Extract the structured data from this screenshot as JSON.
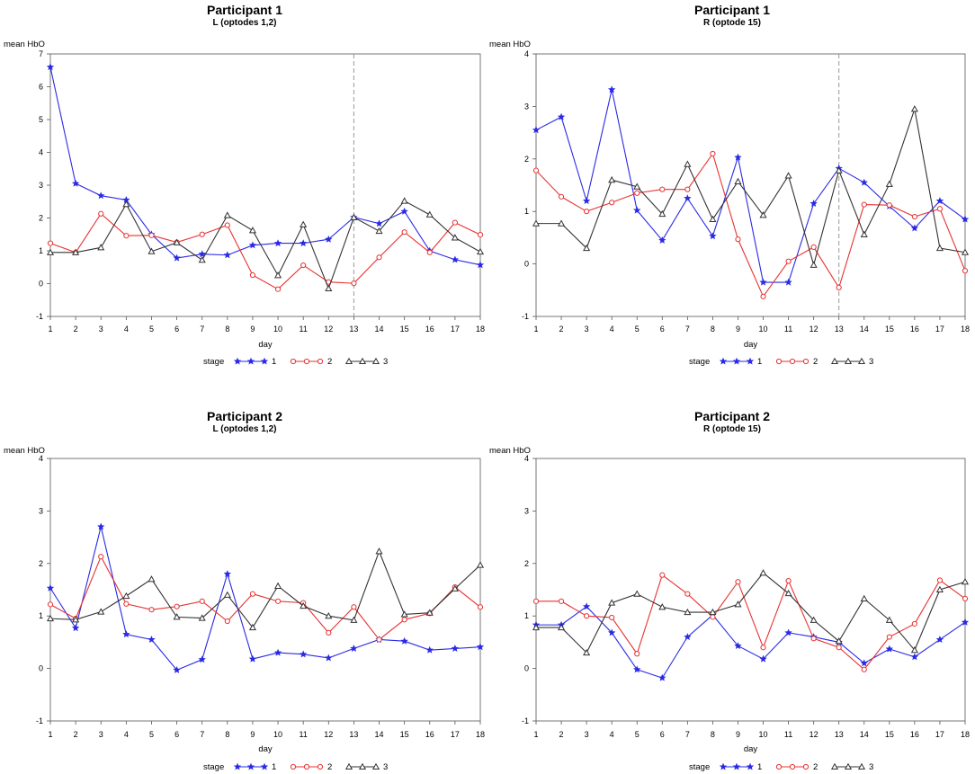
{
  "colors": {
    "stage1": "#2a2ae6",
    "stage2": "#e83232",
    "stage3": "#333333",
    "axis": "#555555",
    "refline": "#9a9a9a"
  },
  "chart_data": [
    {
      "type": "line",
      "title": "Participant 1",
      "subtitle": "L (optodes 1,2)",
      "xlabel": "day",
      "ylabel": "mean HbO",
      "xlim": [
        1,
        18
      ],
      "ylim": [
        -1,
        7
      ],
      "x_ticks": [
        "1",
        "2",
        "3",
        "4",
        "5",
        "6",
        "7",
        "8",
        "9",
        "10",
        "11",
        "12",
        "13",
        "14",
        "15",
        "16",
        "17",
        "18"
      ],
      "y_ticks": [
        "-1",
        "0",
        "1",
        "2",
        "3",
        "4",
        "5",
        "6",
        "7"
      ],
      "ref_line_day": 13,
      "legend_title": "stage",
      "series": [
        {
          "name": "1",
          "values": [
            6.6,
            3.05,
            2.68,
            2.55,
            1.5,
            0.78,
            0.9,
            0.87,
            1.17,
            1.23,
            1.23,
            1.35,
            2.02,
            1.83,
            2.2,
            1.0,
            0.73,
            0.57
          ]
        },
        {
          "name": "2",
          "values": [
            1.23,
            0.95,
            2.13,
            1.46,
            1.47,
            1.26,
            1.5,
            1.78,
            0.26,
            -0.17,
            0.56,
            0.05,
            0.01,
            0.8,
            1.57,
            0.95,
            1.86,
            1.49
          ]
        },
        {
          "name": "3",
          "values": [
            0.95,
            0.95,
            1.1,
            2.42,
            0.98,
            1.25,
            0.72,
            2.08,
            1.62,
            0.25,
            1.8,
            -0.15,
            2.02,
            1.6,
            2.52,
            2.1,
            1.4,
            0.97
          ]
        }
      ]
    },
    {
      "type": "line",
      "title": "Participant 1",
      "subtitle": "R (optode 15)",
      "xlabel": "day",
      "ylabel": "mean HbO",
      "xlim": [
        1,
        18
      ],
      "ylim": [
        -1,
        4
      ],
      "x_ticks": [
        "1",
        "2",
        "3",
        "4",
        "5",
        "6",
        "7",
        "8",
        "9",
        "10",
        "11",
        "12",
        "13",
        "14",
        "15",
        "16",
        "17",
        "18"
      ],
      "y_ticks": [
        "-1",
        "0",
        "1",
        "2",
        "3",
        "4"
      ],
      "ref_line_day": 13,
      "legend_title": "stage",
      "series": [
        {
          "name": "1",
          "values": [
            2.55,
            2.8,
            1.2,
            3.32,
            1.02,
            0.45,
            1.25,
            0.53,
            2.03,
            -0.35,
            -0.35,
            1.15,
            1.82,
            1.55,
            1.1,
            0.68,
            1.2,
            0.85
          ]
        },
        {
          "name": "2",
          "values": [
            1.78,
            1.28,
            1.0,
            1.17,
            1.35,
            1.42,
            1.42,
            2.1,
            0.47,
            -0.62,
            0.05,
            0.32,
            -0.45,
            1.13,
            1.12,
            0.9,
            1.05,
            -0.13
          ]
        },
        {
          "name": "3",
          "values": [
            0.77,
            0.77,
            0.3,
            1.6,
            1.47,
            0.95,
            1.9,
            0.85,
            1.57,
            0.93,
            1.68,
            -0.02,
            1.78,
            0.56,
            1.52,
            2.95,
            0.3,
            0.22
          ]
        }
      ]
    },
    {
      "type": "line",
      "title": "Participant 2",
      "subtitle": "L (optodes 1,2)",
      "xlabel": "day",
      "ylabel": "mean HbO",
      "xlim": [
        1,
        18
      ],
      "ylim": [
        -1,
        4
      ],
      "x_ticks": [
        "1",
        "2",
        "3",
        "4",
        "5",
        "6",
        "7",
        "8",
        "9",
        "10",
        "11",
        "12",
        "13",
        "14",
        "15",
        "16",
        "17",
        "18"
      ],
      "y_ticks": [
        "-1",
        "0",
        "1",
        "2",
        "3",
        "4"
      ],
      "ref_line_day": null,
      "legend_title": "stage",
      "series": [
        {
          "name": "1",
          "values": [
            1.53,
            0.77,
            2.7,
            0.65,
            0.55,
            -0.03,
            0.17,
            1.8,
            0.18,
            0.3,
            0.27,
            0.2,
            0.38,
            0.55,
            0.52,
            0.35,
            0.38,
            0.41
          ]
        },
        {
          "name": "2",
          "values": [
            1.22,
            0.95,
            2.13,
            1.23,
            1.12,
            1.18,
            1.28,
            0.9,
            1.42,
            1.28,
            1.25,
            0.68,
            1.17,
            0.55,
            0.93,
            1.05,
            1.55,
            1.17
          ]
        },
        {
          "name": "3",
          "values": [
            0.95,
            0.93,
            1.08,
            1.38,
            1.7,
            0.98,
            0.96,
            1.4,
            0.78,
            1.57,
            1.19,
            1.0,
            0.92,
            2.23,
            1.03,
            1.06,
            1.52,
            1.97
          ]
        }
      ]
    },
    {
      "type": "line",
      "title": "Participant 2",
      "subtitle": "R (optode 15)",
      "xlabel": "day",
      "ylabel": "mean HbO",
      "xlim": [
        1,
        18
      ],
      "ylim": [
        -1,
        4
      ],
      "x_ticks": [
        "1",
        "2",
        "3",
        "4",
        "5",
        "6",
        "7",
        "8",
        "9",
        "10",
        "11",
        "12",
        "13",
        "14",
        "15",
        "16",
        "17",
        "18"
      ],
      "y_ticks": [
        "-1",
        "0",
        "1",
        "2",
        "3",
        "4"
      ],
      "ref_line_day": null,
      "legend_title": "stage",
      "series": [
        {
          "name": "1",
          "values": [
            0.83,
            0.83,
            1.18,
            0.68,
            -0.02,
            -0.18,
            0.6,
            1.02,
            0.43,
            0.18,
            0.68,
            0.6,
            0.5,
            0.1,
            0.37,
            0.22,
            0.55,
            0.88
          ]
        },
        {
          "name": "2",
          "values": [
            1.28,
            1.28,
            1.0,
            0.97,
            0.28,
            1.78,
            1.42,
            0.98,
            1.65,
            0.4,
            1.67,
            0.57,
            0.4,
            -0.02,
            0.6,
            0.85,
            1.68,
            1.33
          ]
        },
        {
          "name": "3",
          "values": [
            0.78,
            0.78,
            0.3,
            1.25,
            1.42,
            1.17,
            1.07,
            1.07,
            1.22,
            1.82,
            1.43,
            0.92,
            0.52,
            1.33,
            0.92,
            0.35,
            1.5,
            1.65
          ]
        }
      ]
    }
  ]
}
